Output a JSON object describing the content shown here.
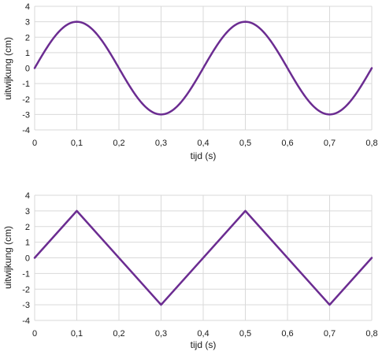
{
  "chart_data": [
    {
      "type": "line",
      "xlabel": "tijd (s)",
      "ylabel": "uitwijkung (cm)",
      "xlim": [
        0,
        0.8
      ],
      "ylim": [
        -4,
        4
      ],
      "grid": true,
      "x_ticks": [
        "0",
        "0,1",
        "0,2",
        "0,3",
        "0,4",
        "0,5",
        "0,6",
        "0,7",
        "0,8"
      ],
      "y_ticks": [
        "4",
        "3",
        "2",
        "1",
        "0",
        "-1",
        "-2",
        "-3",
        "-4"
      ],
      "series": [
        {
          "shape": "sine",
          "amplitude": 3,
          "period": 0.4,
          "color": "#6b2c91",
          "x": [
            0,
            0.1,
            0.2,
            0.3,
            0.4,
            0.5,
            0.6,
            0.7,
            0.8
          ],
          "y": [
            0,
            3,
            0,
            -3,
            0,
            3,
            0,
            -3,
            0
          ]
        }
      ]
    },
    {
      "type": "line",
      "xlabel": "tijd (s)",
      "ylabel": "uitwijkung (cm)",
      "xlim": [
        0,
        0.8
      ],
      "ylim": [
        -4,
        4
      ],
      "grid": true,
      "x_ticks": [
        "0",
        "0,1",
        "0,2",
        "0,3",
        "0,4",
        "0,5",
        "0,6",
        "0,7",
        "0,8"
      ],
      "y_ticks": [
        "4",
        "3",
        "2",
        "1",
        "0",
        "-1",
        "-2",
        "-3",
        "-4"
      ],
      "series": [
        {
          "shape": "triangle",
          "color": "#6b2c91",
          "x": [
            0,
            0.1,
            0.3,
            0.5,
            0.7,
            0.8
          ],
          "y": [
            0,
            3,
            -3,
            3,
            -3,
            0
          ]
        }
      ]
    }
  ]
}
